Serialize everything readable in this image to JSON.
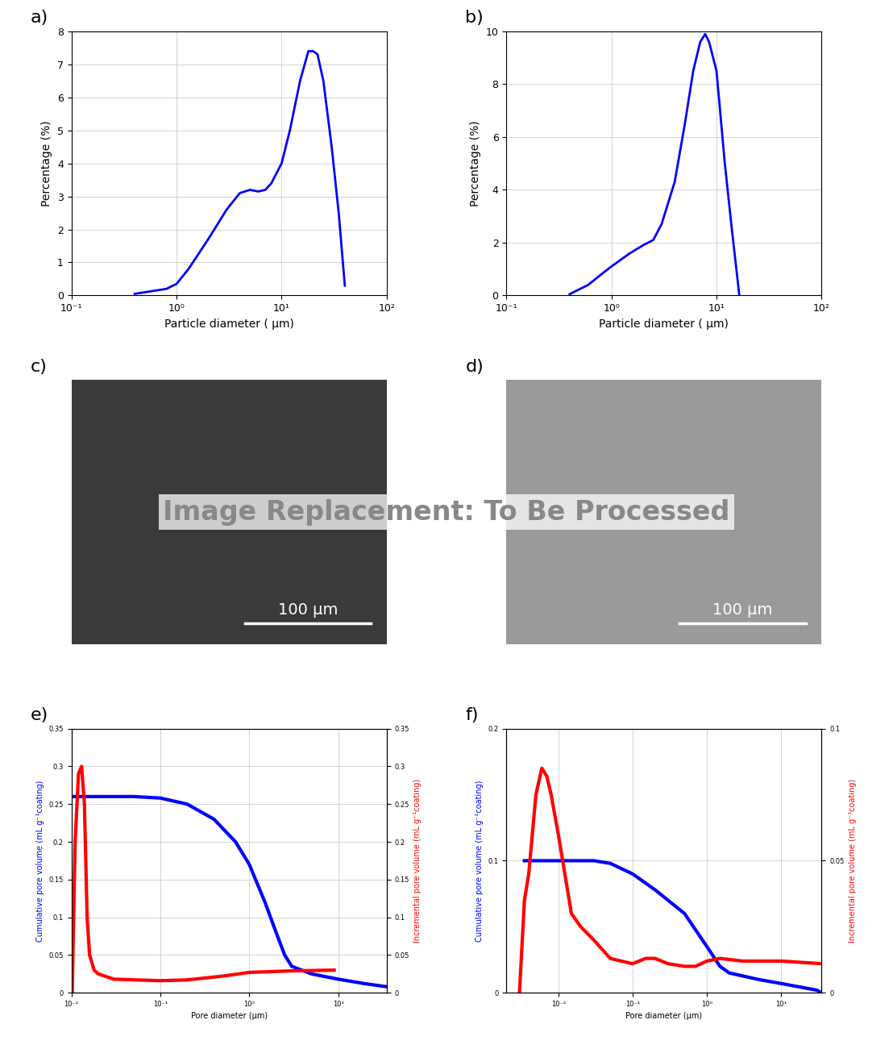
{
  "chart_data": [
    {
      "type": "line",
      "panel": "a)",
      "log": "x",
      "grid": true,
      "xlabel": "Particle diameter ( μm)",
      "ylabel": "Percentage (%)",
      "xlim": [
        0.1,
        100
      ],
      "xticks": [
        {
          "value": 0.1,
          "label": "10⁻¹"
        },
        {
          "value": 1,
          "label": "10⁰"
        },
        {
          "value": 10,
          "label": "10¹"
        },
        {
          "value": 100,
          "label": "10²"
        }
      ],
      "ylim": [
        0,
        8
      ],
      "yticks": [
        0,
        1,
        2,
        3,
        4,
        5,
        6,
        7,
        8
      ],
      "series": [
        {
          "color": "#0000ff",
          "x": [
            0.4,
            0.8,
            1.0,
            1.3,
            2,
            3,
            4,
            5,
            6,
            7,
            8,
            10,
            12,
            15,
            18,
            20,
            22,
            25,
            30,
            35,
            40
          ],
          "values": [
            0.05,
            0.2,
            0.35,
            0.8,
            1.7,
            2.6,
            3.1,
            3.2,
            3.15,
            3.2,
            3.4,
            4.0,
            5.0,
            6.5,
            7.4,
            7.4,
            7.3,
            6.5,
            4.5,
            2.5,
            0.3
          ]
        }
      ]
    },
    {
      "type": "line",
      "panel": "b)",
      "log": "x",
      "grid": true,
      "xlabel": "Particle diameter ( μm)",
      "ylabel": "Percentage (%)",
      "xlim": [
        0.1,
        100
      ],
      "xticks": [
        {
          "value": 0.1,
          "label": "10⁻¹"
        },
        {
          "value": 1,
          "label": "10⁰"
        },
        {
          "value": 10,
          "label": "10¹"
        },
        {
          "value": 100,
          "label": "10²"
        }
      ],
      "ylim": [
        0,
        10
      ],
      "yticks": [
        0,
        2,
        4,
        6,
        8,
        10
      ],
      "series": [
        {
          "color": "#0000ff",
          "x": [
            0.4,
            0.6,
            0.8,
            1,
            1.5,
            2,
            2.5,
            3,
            4,
            5,
            6,
            7,
            7.8,
            8.5,
            10,
            12,
            14,
            16.5
          ],
          "values": [
            0.05,
            0.4,
            0.8,
            1.1,
            1.6,
            1.9,
            2.1,
            2.7,
            4.3,
            6.5,
            8.5,
            9.6,
            9.9,
            9.6,
            8.5,
            5.0,
            2.5,
            0
          ]
        }
      ]
    },
    {
      "type": "image",
      "panel": "c)",
      "scale_bar": "100 μm",
      "color": "#3a3a3a"
    },
    {
      "type": "image",
      "panel": "d)",
      "scale_bar": "100 μm",
      "color": "#9a9a9a"
    },
    {
      "type": "line",
      "panel": "e)",
      "log": "x",
      "grid": true,
      "xlabel": "Pore diameter (μm)",
      "ylabel": "Cumulative pore volume (mL g⁻¹coating)",
      "y2label": "Incremental pore volume (mL g⁻¹coating)",
      "xlim": [
        0.01,
        35
      ],
      "xticks": [
        {
          "value": 0.01,
          "label": "10⁻²"
        },
        {
          "value": 0.1,
          "label": "10⁻¹"
        },
        {
          "value": 1,
          "label": "10⁰"
        },
        {
          "value": 10,
          "label": "10¹"
        }
      ],
      "ylim": [
        0,
        0.35
      ],
      "yticks": [
        0,
        0.05,
        0.1,
        0.15,
        0.2,
        0.25,
        0.3,
        0.35
      ],
      "y2lim": [
        0,
        0.35
      ],
      "y2ticks": [
        0,
        0.05,
        0.1,
        0.15,
        0.2,
        0.25,
        0.3,
        0.35
      ],
      "series": [
        {
          "color": "#0000ff",
          "x": [
            0.01,
            0.05,
            0.1,
            0.2,
            0.4,
            0.7,
            1,
            1.5,
            2,
            2.5,
            3,
            5,
            10,
            20,
            35
          ],
          "values": [
            0.26,
            0.26,
            0.258,
            0.25,
            0.23,
            0.2,
            0.17,
            0.12,
            0.08,
            0.05,
            0.035,
            0.025,
            0.018,
            0.012,
            0.008
          ]
        },
        {
          "color": "#ff0000",
          "axis": "y2",
          "x": [
            0.0102,
            0.011,
            0.012,
            0.013,
            0.014,
            0.015,
            0.016,
            0.018,
            0.02,
            0.03,
            0.1,
            0.2,
            0.5,
            1,
            3,
            9
          ],
          "values": [
            0.0,
            0.2,
            0.29,
            0.3,
            0.25,
            0.1,
            0.05,
            0.03,
            0.025,
            0.018,
            0.016,
            0.017,
            0.022,
            0.027,
            0.029,
            0.03
          ]
        }
      ]
    },
    {
      "type": "line",
      "panel": "f)",
      "log": "x",
      "grid": true,
      "xlabel": "Pore diameter (μm)",
      "ylabel": "Cumulative pore volume (mL g⁻¹coating)",
      "y2label": "Incremental pore volume (mL g⁻¹coating)",
      "xlim": [
        0.002,
        35
      ],
      "xticks": [
        {
          "value": 0.01,
          "label": "10⁻²"
        },
        {
          "value": 0.1,
          "label": "10⁻¹"
        },
        {
          "value": 1,
          "label": "10⁰"
        },
        {
          "value": 10,
          "label": "10¹"
        }
      ],
      "ylim": [
        0,
        0.2
      ],
      "yticks": [
        0,
        0.1,
        0.2
      ],
      "y2lim": [
        0,
        0.1
      ],
      "y2ticks": [
        0,
        0.05,
        0.1
      ],
      "series": [
        {
          "color": "#0000ff",
          "x": [
            0.0035,
            0.01,
            0.03,
            0.05,
            0.1,
            0.2,
            0.5,
            1,
            1.5,
            2,
            5,
            10,
            30,
            35
          ],
          "values": [
            0.1,
            0.1,
            0.1,
            0.098,
            0.09,
            0.078,
            0.06,
            0.035,
            0.02,
            0.015,
            0.01,
            0.007,
            0.002,
            0.0
          ]
        },
        {
          "color": "#ff0000",
          "axis": "y2",
          "x": [
            0.003,
            0.0035,
            0.004,
            0.005,
            0.006,
            0.007,
            0.008,
            0.01,
            0.015,
            0.02,
            0.03,
            0.05,
            0.07,
            0.1,
            0.15,
            0.2,
            0.3,
            0.5,
            0.7,
            1,
            1.5,
            3,
            10,
            35
          ],
          "values": [
            0,
            0.035,
            0.045,
            0.075,
            0.085,
            0.082,
            0.075,
            0.06,
            0.03,
            0.025,
            0.02,
            0.013,
            0.012,
            0.011,
            0.013,
            0.013,
            0.011,
            0.01,
            0.01,
            0.012,
            0.013,
            0.012,
            0.012,
            0.011
          ]
        }
      ]
    }
  ],
  "overlay_text": "Image Replacement: To Be Processed"
}
